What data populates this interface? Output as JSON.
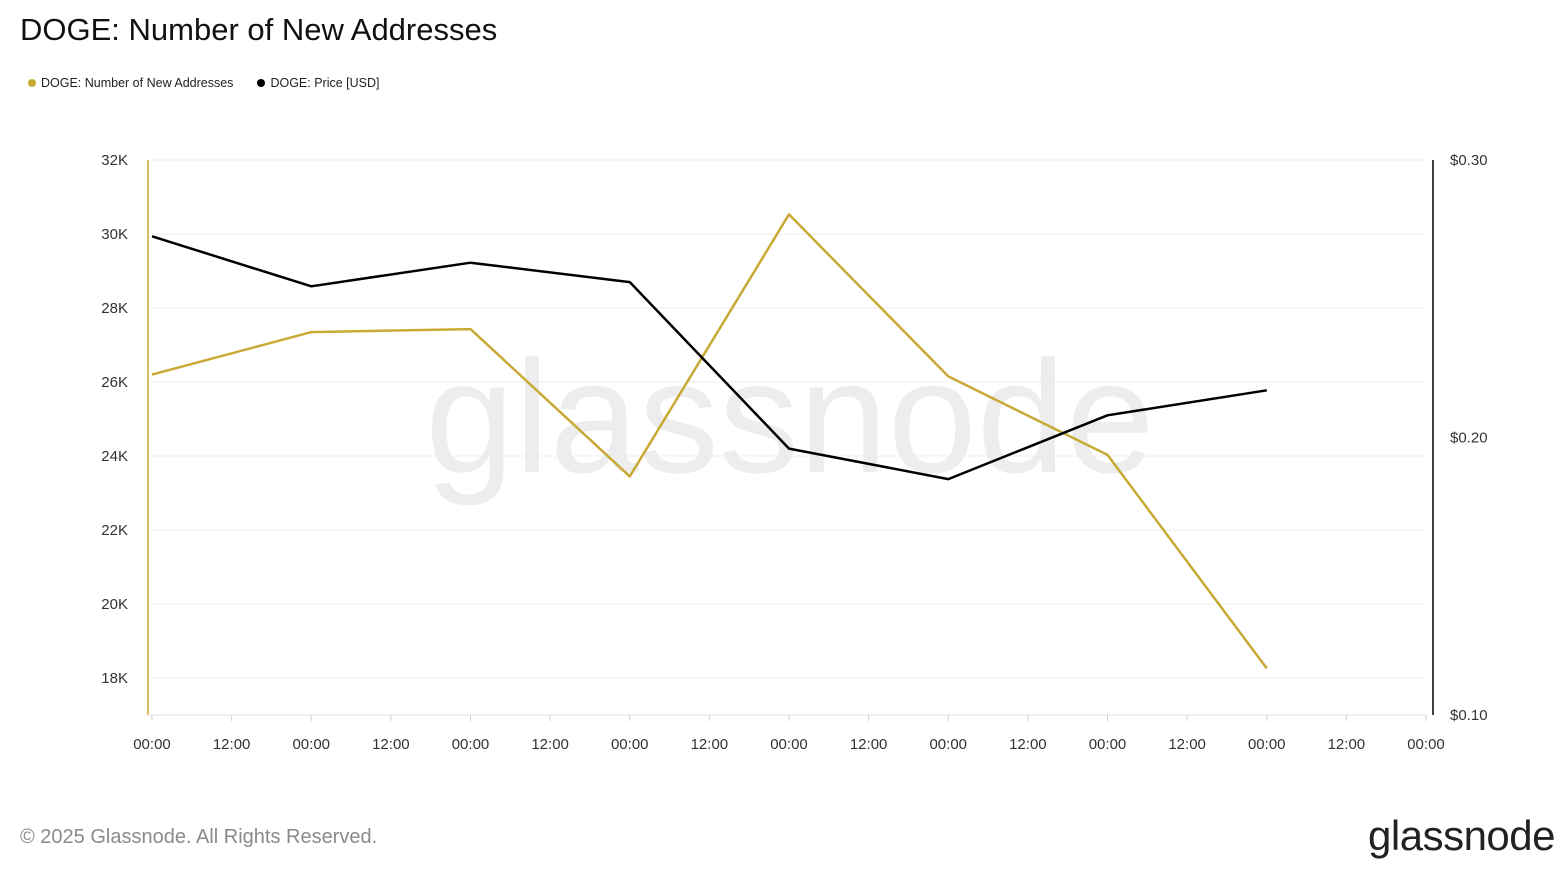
{
  "header": {
    "title": "DOGE: Number of New Addresses"
  },
  "legend": [
    {
      "label": "DOGE: Number of New Addresses",
      "color": "#c9a935"
    },
    {
      "label": "DOGE: Price [USD]",
      "color": "#000000"
    }
  ],
  "footer": {
    "copyright": "© 2025 Glassnode. All Rights Reserved.",
    "logo": "glassnode"
  },
  "watermark": "glassnode",
  "chart_data": {
    "type": "line",
    "title": "DOGE: Number of New Addresses",
    "x_tick_labels": [
      "00:00",
      "12:00",
      "00:00",
      "12:00",
      "00:00",
      "12:00",
      "00:00",
      "12:00",
      "00:00",
      "12:00",
      "00:00",
      "12:00",
      "00:00",
      "12:00",
      "00:00",
      "12:00",
      "00:00"
    ],
    "y_left": {
      "ticks": [
        18000,
        20000,
        22000,
        24000,
        26000,
        28000,
        30000,
        32000
      ],
      "tick_labels": [
        "18K",
        "20K",
        "22K",
        "24K",
        "26K",
        "28K",
        "30K",
        "32K"
      ],
      "range": [
        17000,
        32000
      ]
    },
    "y_right": {
      "ticks": [
        0.1,
        0.2,
        0.3
      ],
      "tick_labels": [
        "$0.10",
        "$0.20",
        "$0.30"
      ],
      "range": [
        0.1,
        0.3
      ]
    },
    "grid": true,
    "legend_position": "top-left",
    "series": [
      {
        "name": "DOGE: Number of New Addresses",
        "axis": "left",
        "color": "#c9a935",
        "values": [
          26200,
          27350,
          27430,
          23450,
          30530,
          26150,
          24030,
          18260
        ]
      },
      {
        "name": "DOGE: Price [USD]",
        "axis": "right",
        "color": "#000000",
        "values": [
          0.2725,
          0.2545,
          0.263,
          0.256,
          0.196,
          0.185,
          0.208,
          0.217
        ]
      }
    ]
  }
}
